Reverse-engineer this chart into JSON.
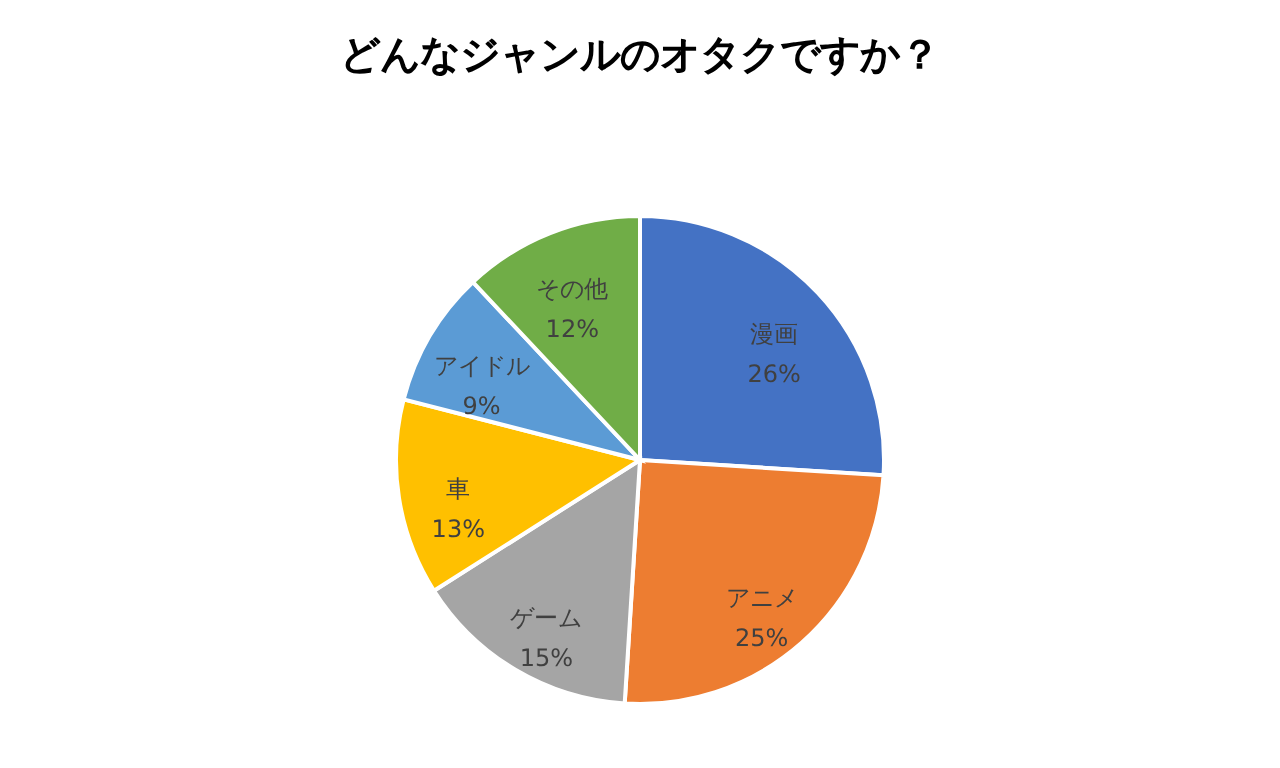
{
  "chart_data": {
    "type": "pie",
    "title": "どんなジャンルのオタクですか？",
    "categories": [
      "漫画",
      "アニメ",
      "ゲーム",
      "車",
      "アイドル",
      "その他"
    ],
    "values": [
      26,
      25,
      15,
      13,
      9,
      12
    ],
    "value_labels": [
      "26%",
      "25%",
      "15%",
      "13%",
      "9%",
      "12%"
    ],
    "colors": [
      "#4472c4",
      "#ed7d31",
      "#a5a5a5",
      "#ffc000",
      "#5b9bd5",
      "#70ad47"
    ]
  }
}
